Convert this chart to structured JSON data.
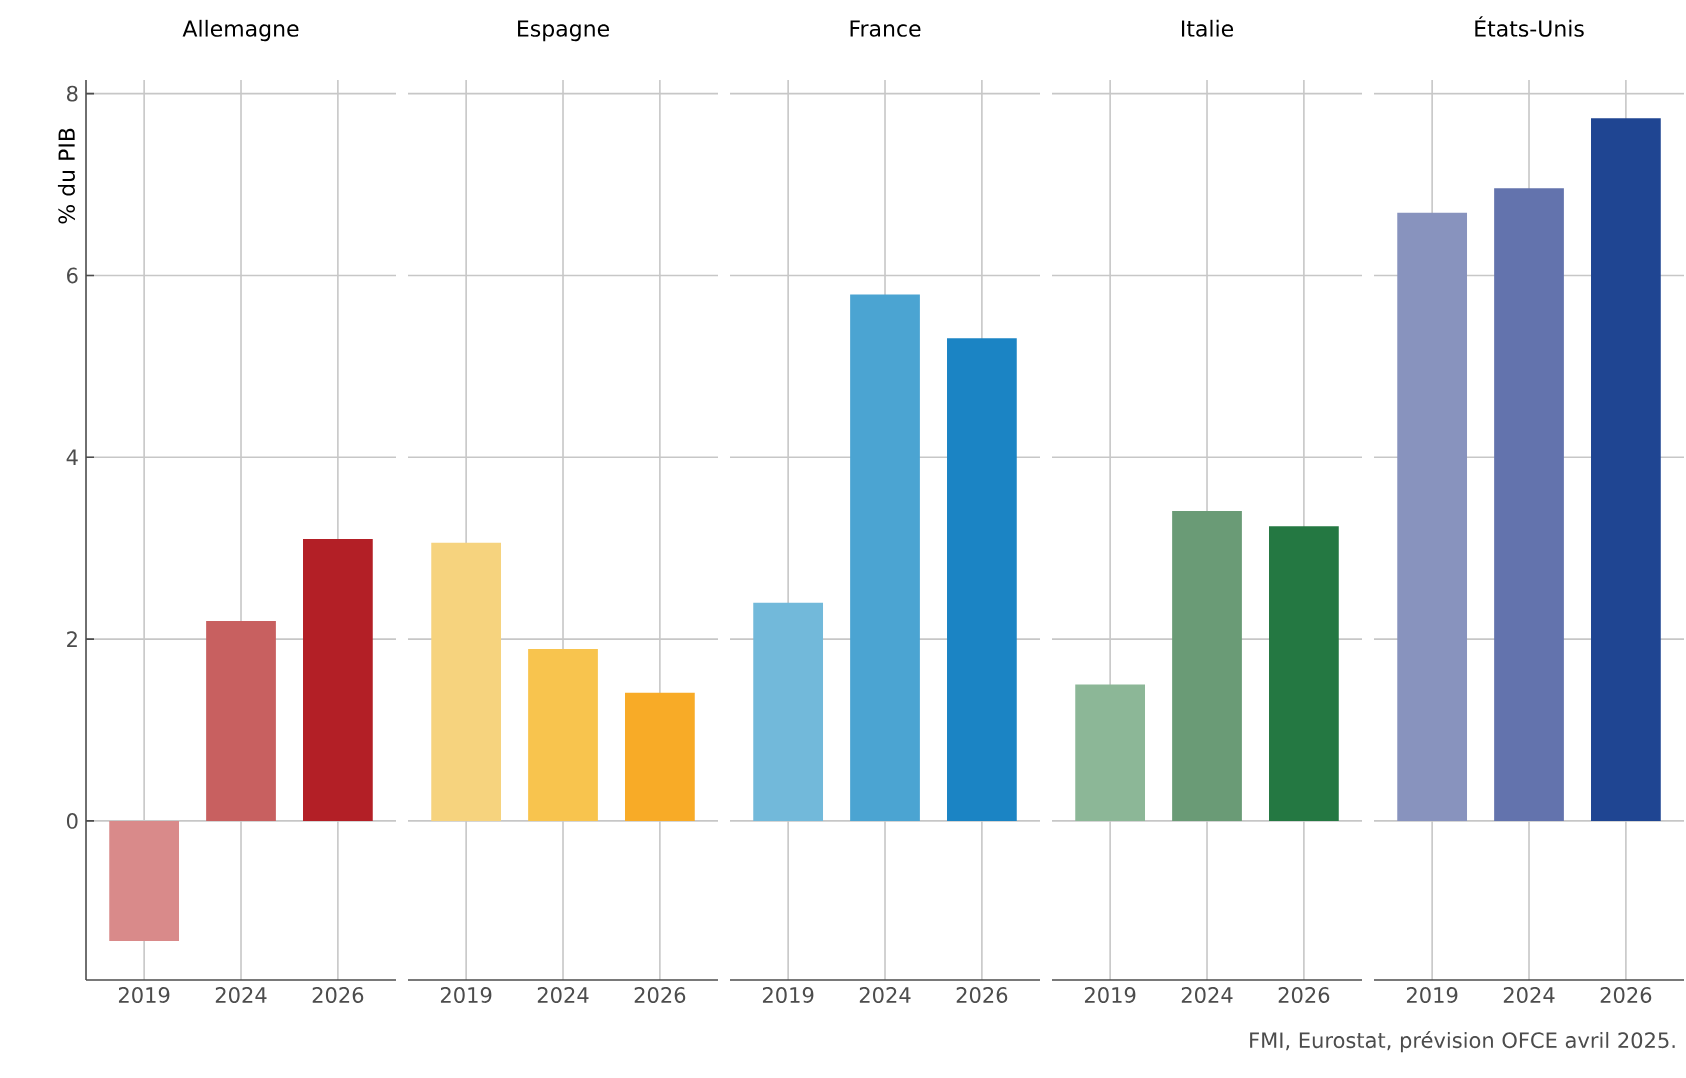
{
  "chart_data": [
    {
      "type": "bar",
      "title": "Allemagne",
      "ylabel": "% du PIB",
      "categories": [
        "2019",
        "2024",
        "2026"
      ],
      "values": [
        -1.32,
        2.2,
        3.1
      ],
      "colors": [
        "#d98a8a",
        "#c86060",
        "#b31f26"
      ],
      "ylim": [
        -1.75,
        8.15
      ],
      "yticks": [
        0,
        2,
        4,
        6,
        8
      ],
      "grid": true
    },
    {
      "type": "bar",
      "title": "Espagne",
      "categories": [
        "2019",
        "2024",
        "2026"
      ],
      "values": [
        3.06,
        1.89,
        1.41
      ],
      "colors": [
        "#f6d37e",
        "#f8c44e",
        "#f8ab27"
      ],
      "ylim": [
        -1.75,
        8.15
      ],
      "yticks": [
        0,
        2,
        4,
        6,
        8
      ],
      "grid": true,
      "tick_labels": "x"
    },
    {
      "type": "bar",
      "title": "France",
      "categories": [
        "2019",
        "2024",
        "2026"
      ],
      "values": [
        2.4,
        5.79,
        5.31
      ],
      "colors": [
        "#72b9da",
        "#4ba4d2",
        "#1b84c4"
      ],
      "ylim": [
        -1.75,
        8.15
      ],
      "yticks": [
        0,
        2,
        4,
        6,
        8
      ],
      "grid": true,
      "tick_labels": "x"
    },
    {
      "type": "bar",
      "title": "Italie",
      "categories": [
        "2019",
        "2024",
        "2026"
      ],
      "values": [
        1.5,
        3.41,
        3.24
      ],
      "colors": [
        "#8cb797",
        "#6a9b76",
        "#247842"
      ],
      "ylim": [
        -1.75,
        8.15
      ],
      "yticks": [
        0,
        2,
        4,
        6,
        8
      ],
      "grid": true,
      "tick_labels": "x"
    },
    {
      "type": "bar",
      "title": "États-Unis",
      "categories": [
        "2019",
        "2024",
        "2026"
      ],
      "values": [
        6.69,
        6.96,
        7.73
      ],
      "colors": [
        "#8893be",
        "#6373ad",
        "#1f4592"
      ],
      "ylim": [
        -1.75,
        8.15
      ],
      "yticks": [
        0,
        2,
        4,
        6,
        8
      ],
      "grid": true,
      "tick_labels": "x",
      "annotations": [
        "FMI, Eurostat, prévision OFCE avril 2025."
      ]
    }
  ]
}
